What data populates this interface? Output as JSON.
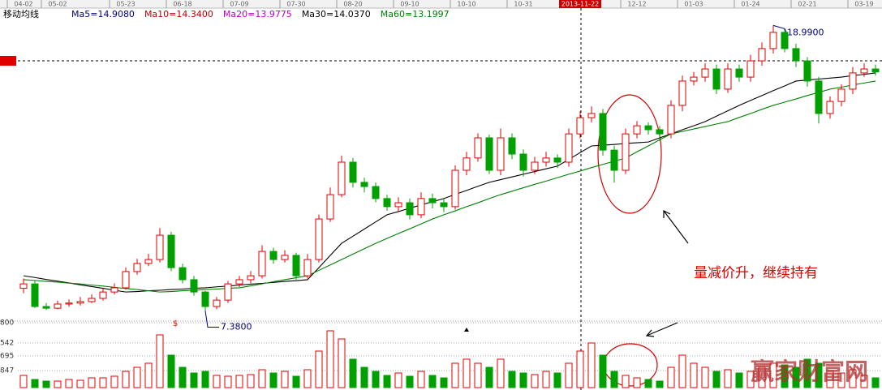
{
  "chart_data": {
    "type": "candlestick",
    "title": "移动均线",
    "categories": [
      "04-02",
      null,
      null,
      "05-02",
      null,
      null,
      null,
      null,
      null,
      "05-23",
      null,
      null,
      null,
      null,
      "06-18",
      null,
      null,
      null,
      null,
      "07-09",
      null,
      null,
      null,
      null,
      "07-30",
      null,
      null,
      null,
      null,
      "08-20",
      null,
      null,
      null,
      null,
      "09-10",
      null,
      null,
      null,
      null,
      "10-10",
      null,
      null,
      null,
      null,
      "10-31",
      null,
      null,
      null,
      null,
      "2013-11-22",
      null,
      null,
      null,
      null,
      "12-12",
      null,
      null,
      null,
      null,
      "01-03",
      null,
      null,
      null,
      null,
      "01-24",
      null,
      null,
      null,
      null,
      "02-21",
      null,
      null,
      null,
      null,
      "03-19",
      null
    ],
    "highlight_category": 49,
    "open": [
      8.3,
      8.48,
      7.56,
      7.49,
      7.66,
      7.7,
      7.76,
      7.89,
      8.15,
      8.32,
      8.98,
      9.31,
      9.47,
      10.46,
      9.14,
      8.65,
      8.15,
      7.56,
      7.82,
      8.48,
      8.65,
      8.81,
      9.8,
      9.47,
      9.64,
      8.81,
      9.47,
      11.12,
      12.11,
      13.43,
      12.61,
      12.44,
      11.95,
      11.62,
      11.78,
      11.29,
      11.95,
      11.78,
      11.62,
      13.1,
      13.6,
      14.42,
      13.1,
      14.42,
      13.76,
      13.1,
      13.43,
      13.6,
      13.43,
      14.58,
      15.24,
      15.41,
      13.92,
      13.1,
      14.58,
      14.91,
      14.75,
      14.58,
      15.74,
      16.73,
      16.89,
      17.22,
      16.4,
      17.22,
      16.89,
      17.55,
      18.05,
      18.71,
      18.05,
      17.55,
      16.73,
      15.41,
      15.9,
      16.4,
      17.06,
      17.22
    ],
    "high": [
      8.7,
      8.6,
      7.7,
      7.8,
      7.85,
      7.95,
      8.05,
      8.3,
      8.5,
      9.15,
      9.5,
      9.7,
      10.75,
      10.6,
      9.3,
      8.8,
      8.2,
      7.95,
      8.6,
      8.8,
      9.0,
      10.05,
      9.95,
      9.85,
      9.75,
      9.7,
      11.3,
      12.4,
      13.7,
      13.6,
      12.8,
      12.6,
      12.1,
      12.0,
      11.95,
      12.2,
      12.15,
      11.95,
      13.3,
      13.85,
      14.6,
      14.55,
      14.8,
      14.6,
      13.95,
      13.65,
      13.85,
      13.75,
      14.8,
      15.5,
      15.7,
      15.6,
      14.1,
      14.8,
      15.1,
      15.05,
      14.9,
      15.95,
      16.95,
      17.1,
      17.45,
      17.4,
      17.45,
      17.4,
      17.8,
      18.3,
      18.99,
      18.85,
      18.25,
      17.7,
      16.9,
      16.1,
      16.6,
      17.3,
      17.45,
      17.4
    ],
    "low": [
      8.1,
      7.5,
      7.42,
      7.45,
      7.55,
      7.6,
      7.7,
      7.8,
      8.05,
      8.25,
      8.85,
      9.2,
      9.35,
      9.0,
      8.5,
      8.0,
      7.38,
      7.45,
      7.7,
      8.35,
      8.5,
      8.7,
      9.3,
      9.35,
      8.65,
      8.7,
      9.35,
      11.0,
      12.0,
      12.4,
      12.2,
      11.8,
      11.45,
      11.4,
      11.1,
      11.15,
      11.55,
      11.4,
      11.5,
      12.9,
      13.45,
      12.95,
      12.9,
      13.55,
      12.85,
      12.95,
      13.25,
      13.2,
      13.25,
      14.4,
      15.05,
      13.7,
      12.6,
      12.95,
      14.4,
      14.55,
      14.3,
      14.4,
      15.5,
      16.55,
      16.7,
      16.2,
      16.25,
      16.7,
      16.7,
      17.35,
      17.85,
      17.9,
      17.3,
      16.5,
      15.0,
      15.2,
      15.7,
      16.2,
      16.9,
      16.95
    ],
    "close": [
      8.48,
      7.56,
      7.49,
      7.66,
      7.7,
      7.76,
      7.89,
      8.15,
      8.32,
      8.98,
      9.31,
      9.47,
      10.46,
      9.14,
      8.65,
      8.15,
      7.56,
      7.82,
      8.48,
      8.65,
      8.81,
      9.8,
      9.47,
      9.64,
      8.81,
      9.47,
      11.12,
      12.11,
      13.43,
      12.61,
      12.44,
      11.95,
      11.62,
      11.78,
      11.29,
      11.95,
      11.78,
      11.62,
      13.1,
      13.6,
      14.42,
      13.1,
      14.42,
      13.76,
      13.1,
      13.43,
      13.6,
      13.43,
      14.58,
      15.24,
      15.41,
      13.92,
      13.1,
      14.58,
      14.91,
      14.75,
      14.58,
      15.74,
      16.73,
      16.89,
      17.22,
      16.4,
      17.22,
      16.89,
      17.55,
      18.05,
      18.71,
      18.05,
      17.55,
      16.73,
      15.41,
      15.9,
      16.4,
      17.06,
      17.22,
      17.1
    ],
    "ylim": [
      7,
      19.3
    ],
    "up_color": "#e00000",
    "down_color": "#00a000",
    "indicators": [
      {
        "name": "Ma5=14.9080",
        "color": "#000080"
      },
      {
        "name": "Ma10=14.3400",
        "color": "#c00000"
      },
      {
        "name": "Ma20=13.9775",
        "color": "#c000c0"
      },
      {
        "name": "Ma30=14.0370",
        "color": "#000000",
        "values": [
          8.81,
          8.74,
          8.66,
          8.59,
          8.52,
          8.44,
          8.37,
          8.3,
          8.22,
          8.15,
          8.17,
          8.2,
          8.22,
          8.25,
          8.27,
          8.3,
          8.32,
          8.36,
          8.39,
          8.43,
          8.47,
          8.5,
          8.54,
          8.58,
          8.61,
          8.65,
          9.14,
          9.64,
          10.13,
          10.42,
          10.71,
          11.0,
          11.29,
          11.42,
          11.56,
          11.69,
          11.82,
          11.95,
          12.12,
          12.28,
          12.45,
          12.61,
          12.72,
          12.83,
          12.94,
          13.05,
          13.16,
          13.27,
          13.54,
          13.82,
          14.09,
          14.12,
          14.15,
          14.19,
          14.22,
          14.25,
          14.42,
          14.58,
          14.75,
          14.91,
          15.08,
          15.3,
          15.52,
          15.74,
          15.94,
          16.14,
          16.34,
          16.53,
          16.73,
          16.77,
          16.81,
          16.85,
          16.89,
          16.95,
          17.0,
          17.06
        ]
      },
      {
        "name": "Ma60=13.1997",
        "color": "#008000",
        "values": [
          8.65,
          8.62,
          8.58,
          8.55,
          8.51,
          8.48,
          8.43,
          8.39,
          8.34,
          8.29,
          8.25,
          8.2,
          8.15,
          8.17,
          8.2,
          8.22,
          8.25,
          8.27,
          8.3,
          8.32,
          8.4,
          8.48,
          8.57,
          8.65,
          8.73,
          8.81,
          9.03,
          9.25,
          9.47,
          9.69,
          9.91,
          10.13,
          10.33,
          10.53,
          10.72,
          10.92,
          11.12,
          11.29,
          11.45,
          11.62,
          11.78,
          11.95,
          12.11,
          12.25,
          12.39,
          12.53,
          12.66,
          12.8,
          12.94,
          13.07,
          13.21,
          13.34,
          13.47,
          13.6,
          13.85,
          14.09,
          14.34,
          14.58,
          14.68,
          14.78,
          14.88,
          14.98,
          15.08,
          15.25,
          15.41,
          15.58,
          15.74,
          15.87,
          16.0,
          16.14,
          16.27,
          16.4,
          16.48,
          16.57,
          16.65,
          16.73
        ]
      }
    ],
    "max_label": "18.9900",
    "max_index": 66,
    "min_label": "7.3800",
    "min_index": 16,
    "annotation": "量减价升，继续持有",
    "marker": "$",
    "volume": {
      "values": [
        15,
        10,
        8,
        8,
        10,
        9,
        12,
        12,
        14,
        20,
        25,
        30,
        65,
        40,
        25,
        18,
        20,
        15,
        14,
        15,
        16,
        22,
        18,
        20,
        14,
        22,
        45,
        70,
        60,
        35,
        25,
        20,
        15,
        18,
        14,
        20,
        15,
        12,
        30,
        35,
        30,
        25,
        35,
        20,
        18,
        16,
        20,
        18,
        30,
        45,
        55,
        40,
        20,
        15,
        12,
        10,
        8,
        25,
        40,
        30,
        25,
        20,
        22,
        18,
        20,
        25,
        30,
        28,
        25,
        35,
        30,
        20,
        18,
        22,
        15,
        12
      ],
      "ylim": [
        0,
        80
      ],
      "axis_labels": [
        "800",
        "542",
        "695",
        "847"
      ]
    },
    "watermark": "赢家财富网"
  }
}
